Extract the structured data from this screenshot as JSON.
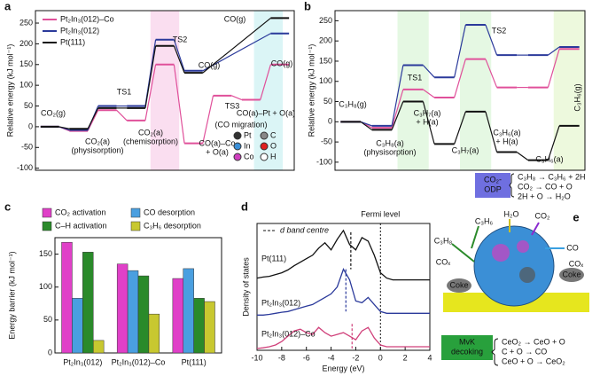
{
  "chart_data": [
    {
      "type": "step",
      "panel_label": "a",
      "ylabel": "Relative energy (kJ mol⁻¹)",
      "ylim": [
        -105,
        280
      ],
      "yticks": [
        -100,
        -50,
        0,
        50,
        100,
        150,
        200,
        250
      ],
      "series": [
        {
          "name": "Pt₂In₃(012)–Co",
          "color": "#e0509a",
          "values": [
            0,
            -10,
            40,
            15,
            150,
            -40,
            75,
            65,
            150
          ]
        },
        {
          "name": "Pt₂In₃(012)",
          "color": "#2b3a9b",
          "values": [
            0,
            -8,
            50,
            50,
            210,
            135,
            null,
            null,
            225
          ]
        },
        {
          "name": "Pt(111)",
          "color": "#111111",
          "values": [
            0,
            -5,
            45,
            45,
            195,
            130,
            null,
            null,
            262
          ]
        }
      ],
      "annotations": [
        "CO₂(g)",
        "CO₂(a)",
        "(physisorption)",
        "TS1",
        "CO₂(a)",
        "(chemisorption)",
        "TS2",
        "CO(g)",
        "CO(g)",
        "TS3",
        "CO(a)–Pt + O(a)",
        "(CO migration)",
        "CO(a)–Co",
        "+ O(a)",
        "CO(g)"
      ],
      "atom_legend": [
        {
          "name": "Pt",
          "color": "#333333"
        },
        {
          "name": "In",
          "color": "#3a8fd8"
        },
        {
          "name": "Co",
          "color": "#d03fbf"
        },
        {
          "name": "C",
          "color": "#888888"
        },
        {
          "name": "O",
          "color": "#e02020"
        },
        {
          "name": "H",
          "color": "#ffffff"
        }
      ]
    },
    {
      "type": "step",
      "panel_label": "b",
      "ylabel": "Relative energy (kJ mol⁻¹)",
      "ylim": [
        -120,
        275
      ],
      "yticks": [
        -100,
        -50,
        0,
        50,
        100,
        150,
        200,
        250
      ],
      "series": [
        {
          "name": "Pt₂In₃(012)–Co",
          "color": "#e0509a",
          "values": [
            0,
            -15,
            80,
            60,
            155,
            85,
            85,
            180
          ]
        },
        {
          "name": "Pt₂In₃(012)",
          "color": "#2b3a9b",
          "values": [
            0,
            -10,
            140,
            110,
            240,
            165,
            165,
            185
          ]
        },
        {
          "name": "Pt(111)",
          "color": "#111111",
          "values": [
            0,
            -20,
            50,
            -55,
            25,
            -75,
            -95,
            -10
          ]
        }
      ],
      "annotations": [
        "C₃H₈(g)",
        "C₃H₈(a)",
        "(physisorption)",
        "TS1",
        "C₃H₇(a)",
        "+ H(a)",
        "C₃H₇(a)",
        "TS2",
        "C₃H₆(a)",
        "+ H(a)",
        "C₃H₆(a)",
        "C₃H₆(g)"
      ],
      "inset_box": [
        "CO₂-",
        "ODP"
      ],
      "equations": [
        "C₃H₈ → C₃H₆ + 2H",
        "CO₂ → CO + O",
        "2H + O → H₂O"
      ]
    },
    {
      "type": "bar",
      "panel_label": "c",
      "ylabel": "Energy barrier (kJ mol⁻¹)",
      "categories": [
        "Pt₂In₃(012)",
        "Pt₂In₃(012)–Co",
        "Pt(111)"
      ],
      "ylim": [
        0,
        175
      ],
      "yticks": [
        0,
        50,
        100,
        150
      ],
      "series": [
        {
          "name": "CO₂ activation",
          "color": "#e040c8",
          "values": [
            168,
            135,
            113
          ]
        },
        {
          "name": "CO desorption",
          "color": "#4a9fe0",
          "values": [
            83,
            125,
            128
          ]
        },
        {
          "name": "C–H activation",
          "color": "#2a8a2a",
          "values": [
            153,
            117,
            83
          ]
        },
        {
          "name": "C₃H₆ desorption",
          "color": "#c8c830",
          "values": [
            19,
            59,
            78
          ]
        }
      ]
    },
    {
      "type": "line",
      "panel_label": "d",
      "xlabel": "Energy (eV)",
      "ylabel": "Density of states",
      "xlim": [
        -10,
        4
      ],
      "xticks": [
        -10,
        -8,
        -6,
        -4,
        -2,
        0,
        2,
        4
      ],
      "ylim": [
        0,
        3.6
      ],
      "x": [
        -10,
        -9.5,
        -9,
        -8.5,
        -8,
        -7.5,
        -7,
        -6.5,
        -6,
        -5.5,
        -5,
        -4.5,
        -4,
        -3.5,
        -3,
        -2.5,
        -2,
        -1.5,
        -1,
        -0.5,
        0,
        0.5,
        1,
        1.5,
        2,
        2.5,
        3,
        3.5,
        4
      ],
      "series": [
        {
          "name": "Pt(111)",
          "color": "#111111",
          "values": [
            2.05,
            2.08,
            2.1,
            2.15,
            2.2,
            2.28,
            2.4,
            2.5,
            2.6,
            2.7,
            2.9,
            3.05,
            2.85,
            3.15,
            3.4,
            3.0,
            2.85,
            3.2,
            3.1,
            2.7,
            2.2,
            2.05,
            2.0,
            2.0,
            2.0,
            2.0,
            2.0,
            2.0,
            2.0
          ],
          "d_band_centre": -2.4
        },
        {
          "name": "Pt₂In₃(012)",
          "color": "#2b3a9b",
          "values": [
            1.0,
            1.0,
            1.02,
            1.05,
            1.08,
            1.1,
            1.15,
            1.2,
            1.25,
            1.3,
            1.4,
            1.5,
            1.6,
            1.8,
            2.3,
            2.0,
            1.4,
            1.35,
            1.5,
            1.3,
            1.1,
            1.05,
            1.05,
            1.05,
            1.05,
            1.05,
            1.05,
            1.05,
            1.05
          ],
          "d_band_centre": -2.8
        },
        {
          "name": "Pt₂In₃(012)–Co",
          "color": "#d0407a",
          "values": [
            0.05,
            0.07,
            0.1,
            0.15,
            0.25,
            0.4,
            0.55,
            0.6,
            0.5,
            0.45,
            0.65,
            0.5,
            0.4,
            0.45,
            0.5,
            0.4,
            0.3,
            0.55,
            0.65,
            0.35,
            0.15,
            0.1,
            0.1,
            0.1,
            0.1,
            0.1,
            0.1,
            0.1,
            0.1
          ],
          "d_band_centre": -2.3
        }
      ],
      "d_band_legend": "d band centre",
      "fermi_level": 0,
      "fermi_label": "Fermi level"
    }
  ],
  "diagram": {
    "panel_label": "e",
    "labels": [
      "C₃H₆",
      "H₂O",
      "CO₂",
      "C₃H₈",
      "CO",
      "COₓ",
      "COₓ",
      "Coke",
      "Coke"
    ],
    "box": [
      "MvK",
      "decoking"
    ],
    "equations": [
      "CeO₂ → CeO + O",
      "C + O → CO",
      "CeO + O → CeO₂"
    ]
  }
}
